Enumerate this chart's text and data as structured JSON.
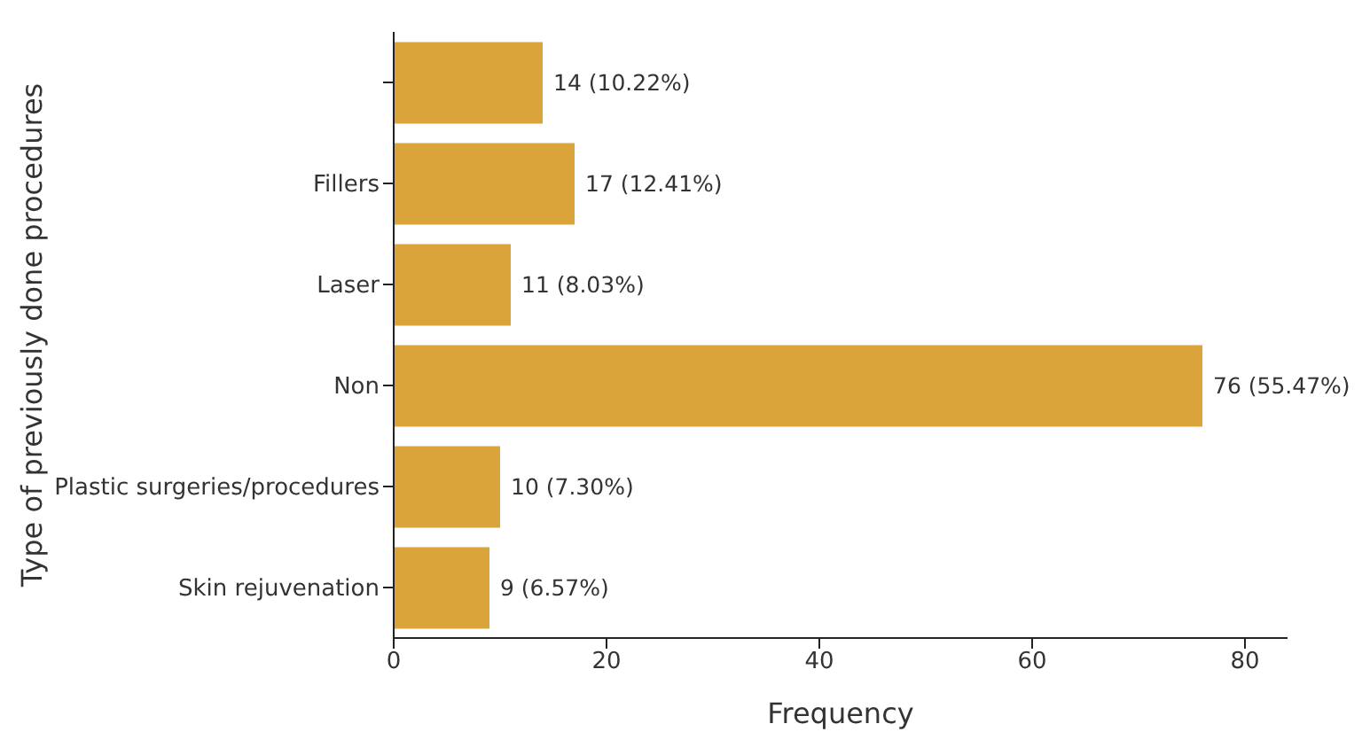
{
  "chart_data": {
    "type": "bar",
    "orientation": "horizontal",
    "xlabel": "Frequency",
    "ylabel": "Type of previously done procedures",
    "categories": [
      null,
      "Fillers",
      "Laser",
      "Non",
      "Plastic surgeries/procedures",
      "Skin rejuvenation"
    ],
    "values": [
      14,
      17,
      11,
      76,
      10,
      9
    ],
    "value_labels": [
      "14 (10.22%)",
      "17 (12.41%)",
      "11 (8.03%)",
      "76 (55.47%)",
      "10 (7.30%)",
      "9 (6.57%)"
    ],
    "color": "#dba43a",
    "xlim": [
      0,
      84
    ],
    "xticks": [
      0,
      20,
      40,
      60,
      80
    ],
    "grid": false,
    "legend": false
  }
}
